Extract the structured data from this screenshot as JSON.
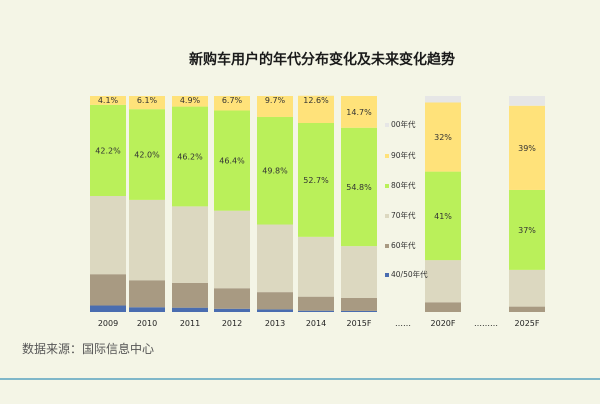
{
  "chart_data": {
    "type": "bar",
    "stacked": true,
    "title": "新购车用户的年代分布变化及未来变化趋势",
    "xlabel": "",
    "ylabel": "",
    "ylim": [
      0,
      100
    ],
    "legend_position": "right",
    "categories": [
      "2009",
      "2010",
      "2011",
      "2012",
      "2013",
      "2014",
      "2015F",
      "……",
      "2020F",
      "………",
      "2025F"
    ],
    "series": [
      {
        "name": "40/50年代",
        "color": "#4a6db0",
        "values": [
          3.0,
          2.2,
          2.0,
          1.5,
          1.2,
          0.6,
          0.5,
          null,
          0,
          null,
          0
        ]
      },
      {
        "name": "60年代",
        "color": "#a89a82",
        "values": [
          14.5,
          12.5,
          11.5,
          9.5,
          8.0,
          6.5,
          6.0,
          null,
          4.5,
          null,
          2.5
        ]
      },
      {
        "name": "70年代",
        "color": "#dcd8c0",
        "values": [
          36.2,
          37.2,
          35.4,
          35.9,
          31.3,
          27.7,
          24.0,
          null,
          19.5,
          null,
          17.0
        ]
      },
      {
        "name": "80年代",
        "color": "#baf05a",
        "values": [
          42.2,
          42.0,
          46.2,
          46.4,
          49.8,
          52.7,
          54.8,
          null,
          41,
          null,
          37
        ]
      },
      {
        "name": "90年代",
        "color": "#ffe27a",
        "values": [
          4.1,
          6.1,
          4.9,
          6.7,
          9.7,
          12.6,
          14.7,
          null,
          32,
          null,
          39
        ]
      },
      {
        "name": "00年代",
        "color": "#e6e6e6",
        "values": [
          0,
          0,
          0,
          0,
          0,
          0,
          0,
          null,
          3,
          null,
          4.5
        ]
      }
    ],
    "data_labels": {
      "80年代": [
        "42.2%",
        "42.0%",
        "46.2%",
        "46.4%",
        "49.8%",
        "52.7%",
        "54.8%",
        "",
        "41%",
        "",
        "37%"
      ],
      "90年代": [
        "4.1%",
        "6.1%",
        "4.9%",
        "6.7%",
        "9.7%",
        "12.6%",
        "14.7%",
        "",
        "32%",
        "",
        "39%"
      ]
    }
  },
  "source_text": "数据来源：国际信息中心"
}
